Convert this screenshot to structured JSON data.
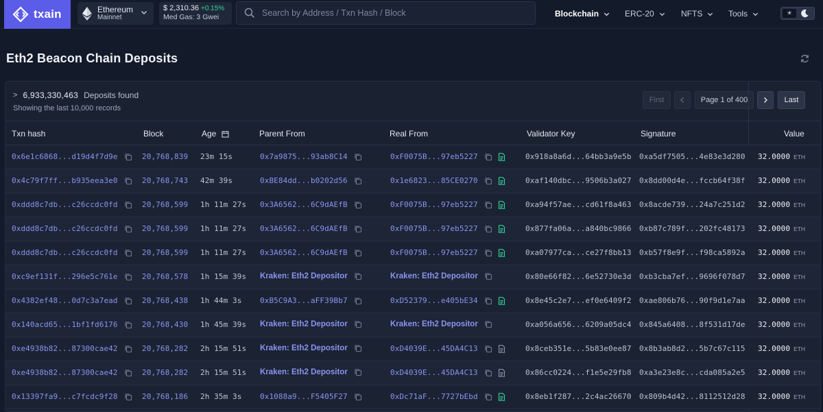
{
  "app": {
    "logo_text": "txain",
    "network": {
      "name": "Ethereum",
      "sub": "Mainnet"
    },
    "price": {
      "value": "$ 2,310.36",
      "change": "+0.15%",
      "gas": "Med Gas: 3 Gwei"
    },
    "search": {
      "placeholder": "Search by Address / Txn Hash / Block"
    },
    "nav": [
      {
        "label": "Blockchain"
      },
      {
        "label": "ERC-20"
      },
      {
        "label": "NFTS"
      },
      {
        "label": "Tools"
      }
    ],
    "theme_sun": "☀",
    "accent": "#5b5ce8"
  },
  "page": {
    "title": "Eth2 Beacon Chain Deposits",
    "caret": ">",
    "count": "6,933,330,463",
    "found_label": "Deposits found",
    "showing": "Showing the last 10,000 records"
  },
  "pagination": {
    "first": "First",
    "page": "Page 1 of 400",
    "last": "Last"
  },
  "table": {
    "headers": {
      "txn": "Txn hash",
      "block": "Block",
      "age": "Age",
      "parent": "Parent From",
      "real": "Real From",
      "vkey": "Validator Key",
      "sig": "Signature",
      "value": "Value"
    },
    "unit": "ETH",
    "rows": [
      {
        "txn": "0x6e1c6868...d19d4f7d9e",
        "block": "20,768,839",
        "age": "23m 15s",
        "parent": "0x7a9875...93ab8C14",
        "real": "0xF0075B...97eb5227",
        "real_doc": "green",
        "vkey": "0x918a8a6d...64bb3a9e5b",
        "sig": "0xa5df7505...4e83e3d280",
        "value": "32.0000"
      },
      {
        "txn": "0x4c79f7ff...b935eea3e0",
        "block": "20,768,743",
        "age": "42m 39s",
        "parent": "0xBE84dd...b0202d56",
        "real": "0x1e6823...85CE0270",
        "real_doc": "green",
        "vkey": "0xaf140dbc...9506b3a027",
        "sig": "0x8dd00d4e...fccb64f38f",
        "value": "32.0000"
      },
      {
        "txn": "0xddd8c7db...c26ccdc0fd",
        "block": "20,768,599",
        "age": "1h 11m 27s",
        "parent": "0x3A6562...6C9dAEfB",
        "real": "0xF0075B...97eb5227",
        "real_doc": "green",
        "vkey": "0xa94f57ae...cd61f8a463",
        "sig": "0x8acde739...24a7c251d2",
        "value": "32.0000"
      },
      {
        "txn": "0xddd8c7db...c26ccdc0fd",
        "block": "20,768,599",
        "age": "1h 11m 27s",
        "parent": "0x3A6562...6C9dAEfB",
        "real": "0xF0075B...97eb5227",
        "real_doc": "green",
        "vkey": "0x877fa06a...a840bc9866",
        "sig": "0xb87c789f...202fc48173",
        "value": "32.0000"
      },
      {
        "txn": "0xddd8c7db...c26ccdc0fd",
        "block": "20,768,599",
        "age": "1h 11m 27s",
        "parent": "0x3A6562...6C9dAEfB",
        "real": "0xF0075B...97eb5227",
        "real_doc": "green",
        "vkey": "0xa07977ca...ce27f8bb13",
        "sig": "0xb57f8e9f...f98ca5892a",
        "value": "32.0000"
      },
      {
        "txn": "0xc9ef131f...296e5c761e",
        "block": "20,768,578",
        "age": "1h 15m 39s",
        "parent": "Kraken: Eth2 Depositor",
        "parent_named": true,
        "real": "Kraken: Eth2 Depositor",
        "real_named": true,
        "real_doc": "none",
        "vkey": "0x80e66f82...6e52730e3d",
        "sig": "0xb3cba7ef...9696f078d7",
        "value": "32.0000"
      },
      {
        "txn": "0x4382ef48...0d7c3a7ead",
        "block": "20,768,438",
        "age": "1h 44m 3s",
        "parent": "0xB5C9A3...aFF39Bb7",
        "real": "0xD52379...e405bE34",
        "real_doc": "green",
        "vkey": "0x8e45c2e7...ef0e6409f2",
        "sig": "0xae806b76...90f9d1e7aa",
        "value": "32.0000"
      },
      {
        "txn": "0x140acd65...1bf1fd6176",
        "block": "20,768,430",
        "age": "1h 45m 39s",
        "parent": "Kraken: Eth2 Depositor",
        "parent_named": true,
        "real": "Kraken: Eth2 Depositor",
        "real_named": true,
        "real_doc": "none",
        "vkey": "0xa056a656...6209a05dc4",
        "sig": "0x845a6408...8f531d17de",
        "value": "32.0000"
      },
      {
        "txn": "0xe4938b82...87300cae42",
        "block": "20,768,282",
        "age": "2h 15m 51s",
        "parent": "Kraken: Eth2 Depositor",
        "parent_named": true,
        "real": "0xD4039E...45DA4C13",
        "real_doc": "gray",
        "vkey": "0x8ceb351e...5b83e0ee87",
        "sig": "0x8b3ab8d2...5b7c67c115",
        "value": "32.0000"
      },
      {
        "txn": "0xe4938b82...87300cae42",
        "block": "20,768,282",
        "age": "2h 15m 51s",
        "parent": "Kraken: Eth2 Depositor",
        "parent_named": true,
        "real": "0xD4039E...45DA4C13",
        "real_doc": "gray",
        "vkey": "0x86cc0224...f1e5e29fb8",
        "sig": "0xa3e23e8c...cda085a2e5",
        "value": "32.0000"
      },
      {
        "txn": "0x13397fa9...c7fcdc9f28",
        "block": "20,768,186",
        "age": "2h 35m 3s",
        "parent": "0x1088a9...F5405F27",
        "real": "0xDc71aF...7727bEbd",
        "real_doc": "green",
        "vkey": "0x8eb1f287...2c4ac26670",
        "sig": "0x809b4d42...8112512d28",
        "value": "32.0000"
      }
    ]
  }
}
